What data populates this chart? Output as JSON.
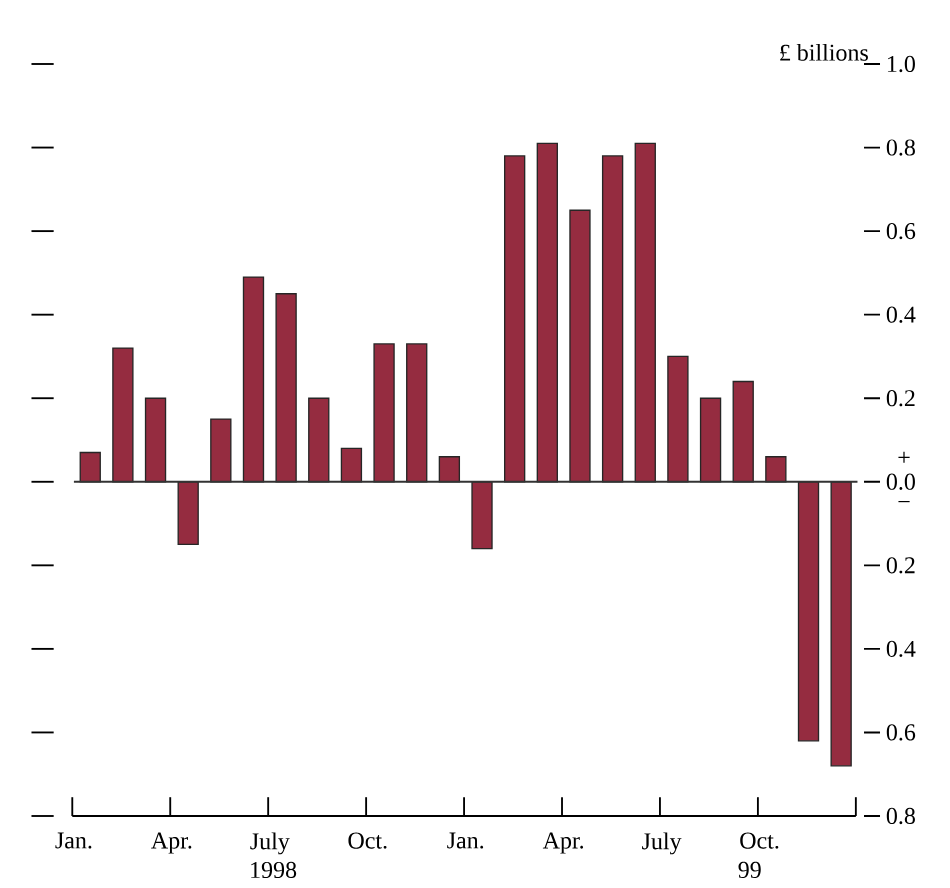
{
  "chart_data": {
    "type": "bar",
    "categories": [
      "Jan.",
      null,
      null,
      "Apr.",
      null,
      null,
      "July",
      null,
      null,
      "Oct.",
      null,
      null,
      "Jan.",
      null,
      null,
      "Apr.",
      null,
      null,
      "July",
      null,
      null,
      "Oct.",
      null,
      null
    ],
    "values": [
      0.07,
      0.32,
      0.2,
      -0.15,
      0.15,
      0.49,
      0.45,
      0.2,
      0.08,
      0.33,
      0.33,
      0.06,
      -0.16,
      0.78,
      0.81,
      0.65,
      0.78,
      0.81,
      0.3,
      0.2,
      0.24,
      0.06,
      -0.62,
      -0.68
    ],
    "color": "#952c40",
    "ylim": [
      -0.8,
      1.0
    ],
    "yticks": [
      {
        "value": 1.0,
        "label": "1.0"
      },
      {
        "value": 0.8,
        "label": "0.8"
      },
      {
        "value": 0.6,
        "label": "0.6"
      },
      {
        "value": 0.4,
        "label": "0.4"
      },
      {
        "value": 0.2,
        "label": "0.2"
      },
      {
        "value": 0.0,
        "label": "0.0"
      },
      {
        "value": -0.2,
        "label": "0.2"
      },
      {
        "value": -0.4,
        "label": "0.4"
      },
      {
        "value": -0.6,
        "label": "0.6"
      },
      {
        "value": -0.8,
        "label": "0.8"
      }
    ],
    "annotations": [
      "£ billions",
      "+",
      "−",
      "1998",
      "99"
    ],
    "line_style": "solid"
  }
}
